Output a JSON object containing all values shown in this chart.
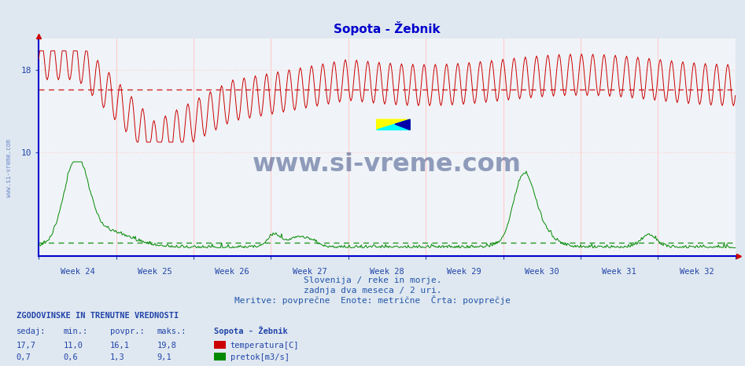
{
  "title": "Sopota - Žebnik",
  "subtitle_lines": [
    "Slovenija / reke in morje.",
    "zadnja dva meseca / 2 uri.",
    "Meritve: povprečne  Enote: metrične  Črta: povprečje"
  ],
  "watermark_text": "www.si-vreme.com",
  "watermark_color": "#1a3070",
  "y_ticks": [
    10,
    18
  ],
  "ylim": [
    0,
    21
  ],
  "background_color": "#dfe8f0",
  "plot_bg_color": "#f0f4f8",
  "temp_color": "#cc0000",
  "flow_color": "#008800",
  "avg_temp_value": 16.1,
  "avg_flow_value": 1.3,
  "temp_min": 11.0,
  "temp_max": 19.8,
  "flow_max": 9.1,
  "n_points": 744,
  "table_header": "ZGODOVINSKE IN TRENUTNE VREDNOSTI",
  "table_cols": [
    "sedaj:",
    "min.:",
    "povpr.:",
    "maks.:"
  ],
  "col_label": "Sopota - Žebnik",
  "row1_label": "temperatura[C]",
  "row2_label": "pretok[m3/s]",
  "row1_values": [
    "17,7",
    "11,0",
    "16,1",
    "19,8"
  ],
  "row2_values": [
    "0,7",
    "0,6",
    "1,3",
    "9,1"
  ],
  "title_color": "#0000cc",
  "subtitle_color": "#2255aa",
  "table_color": "#2244aa",
  "axis_color": "#0000cc",
  "tick_label_color": "#2244aa",
  "grid_v_color": "#ffcccc",
  "grid_h_color": "#ffcccc",
  "avg_dash_color_temp": "#cc0000",
  "avg_dash_color_flow": "#008800",
  "x_week_labels": [
    "Week 24",
    "Week 25",
    "Week 26",
    "Week 27",
    "Week 28",
    "Week 29",
    "Week 30",
    "Week 31",
    "Week 32"
  ],
  "n_weeks": 9
}
